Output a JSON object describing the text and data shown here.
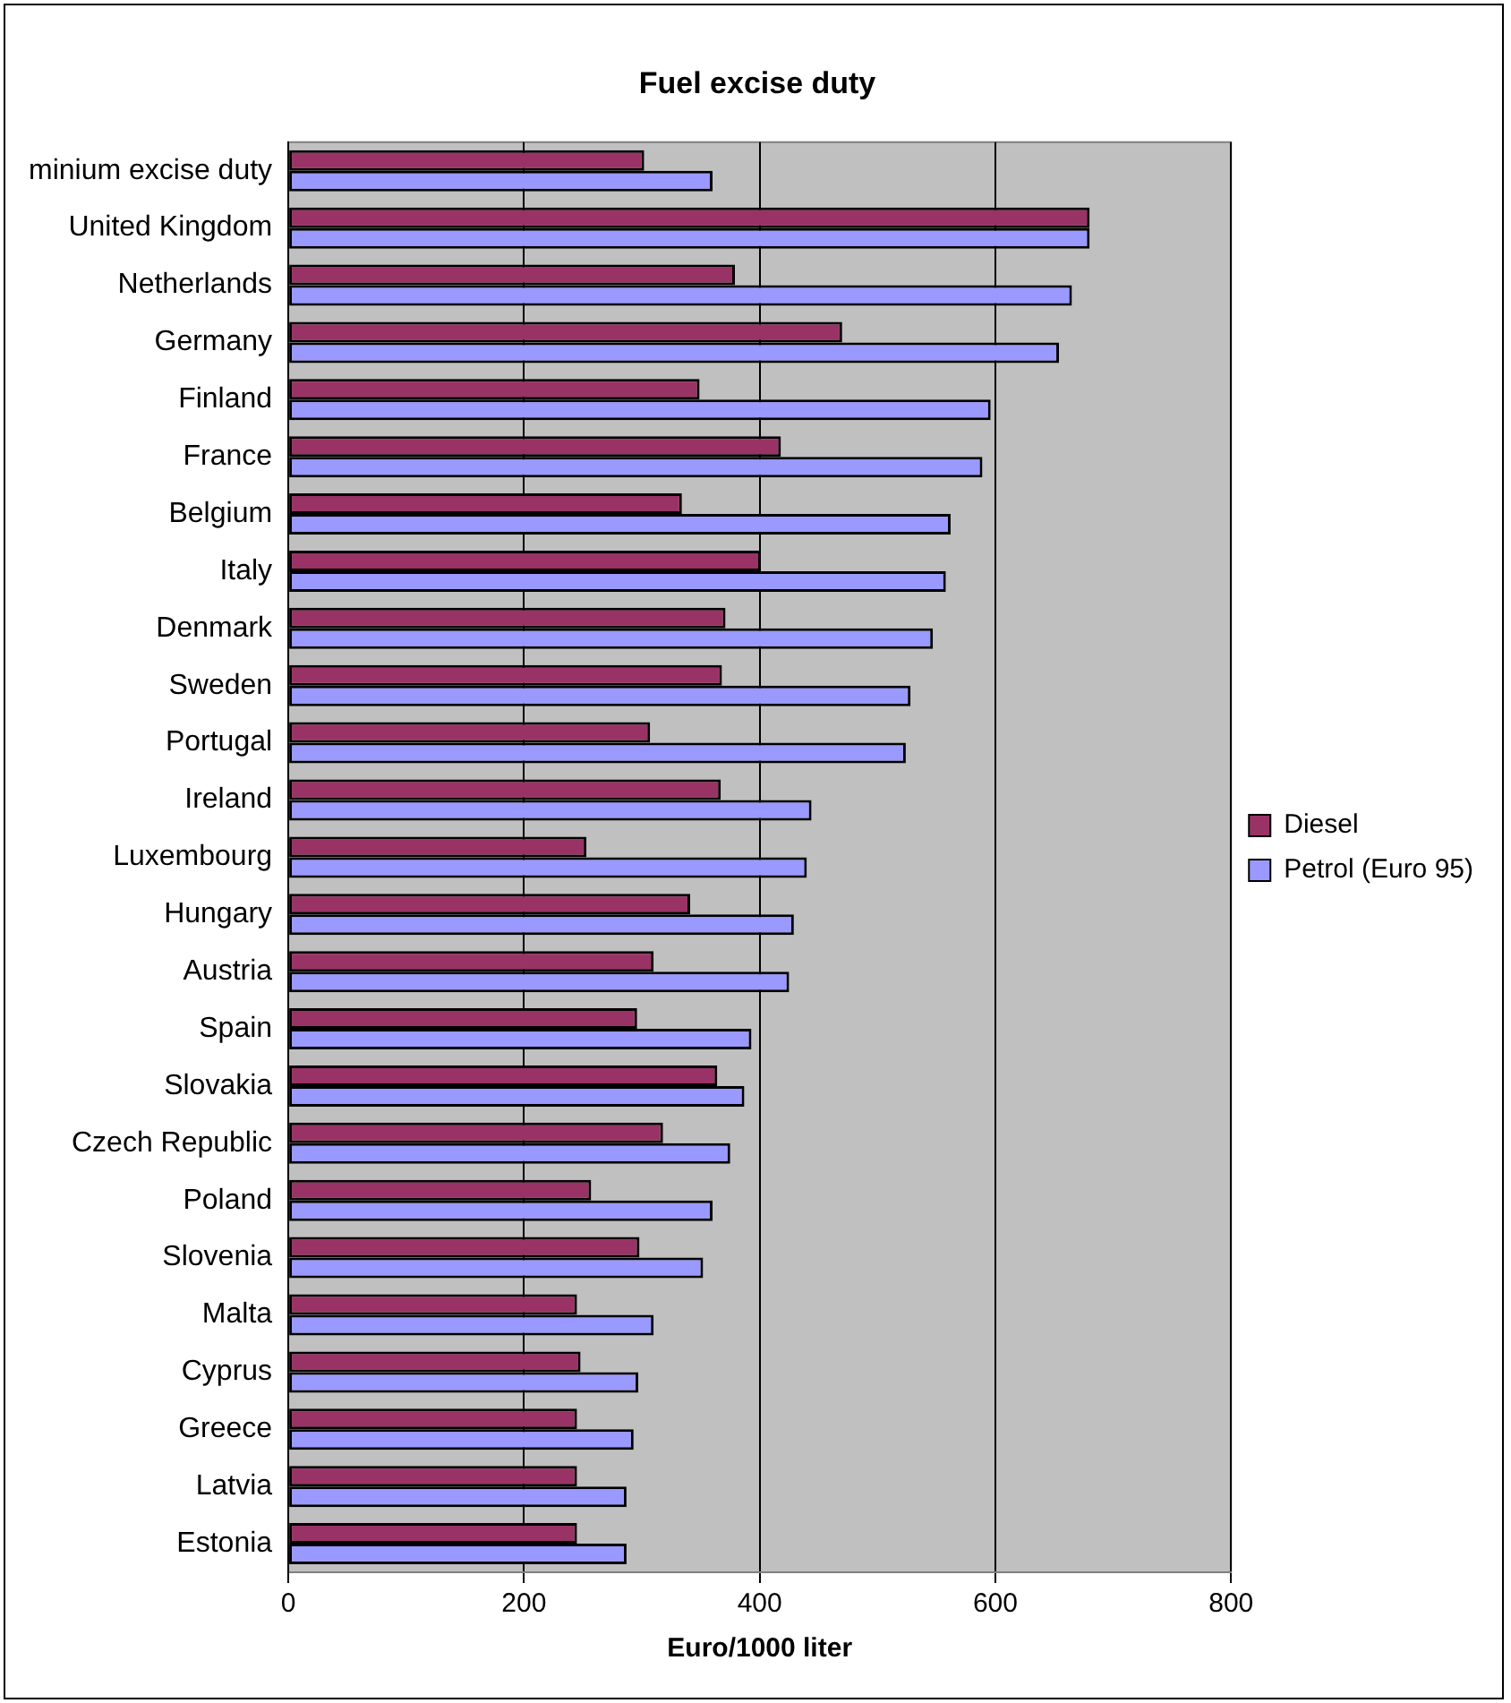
{
  "chart_data": {
    "type": "bar",
    "orientation": "horizontal",
    "title": "Fuel excise duty",
    "xlabel": "Euro/1000 liter",
    "categories": [
      "minium excise duty",
      "United Kingdom",
      "Netherlands",
      "Germany",
      "Finland",
      "France",
      "Belgium",
      "Italy",
      "Denmark",
      "Sweden",
      "Portugal",
      "Ireland",
      "Luxembourg",
      "Hungary",
      "Austria",
      "Spain",
      "Slovakia",
      "Czech Republic",
      "Poland",
      "Slovenia",
      "Malta",
      "Cyprus",
      "Greece",
      "Latvia",
      "Estonia"
    ],
    "series": [
      {
        "name": "Diesel",
        "color": "#993366",
        "values": [
          302,
          680,
          379,
          470,
          349,
          418,
          334,
          401,
          371,
          368,
          307,
          367,
          253,
          341,
          310,
          296,
          364,
          318,
          257,
          298,
          245,
          248,
          245,
          245,
          245
        ]
      },
      {
        "name": "Petrol (Euro 95)",
        "color": "#9999ff",
        "values": [
          360,
          680,
          665,
          654,
          596,
          589,
          562,
          558,
          547,
          528,
          524,
          444,
          440,
          429,
          425,
          393,
          387,
          375,
          360,
          352,
          310,
          297,
          293,
          287,
          287
        ]
      }
    ],
    "xlim": [
      0,
      800
    ],
    "xticks": [
      0,
      200,
      400,
      600,
      800
    ],
    "grid": "x",
    "legend": "right"
  }
}
